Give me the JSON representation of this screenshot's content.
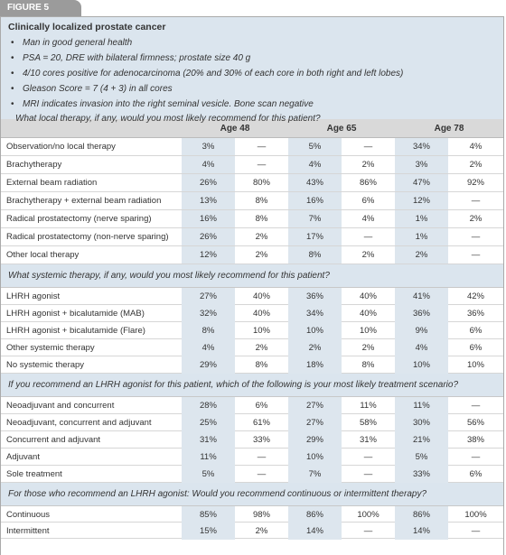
{
  "figure_label": "FIGURE 5",
  "case": {
    "title": "Clinically localized prostate cancer",
    "bullets": [
      "Man in good general health",
      "PSA = 20, DRE with bilateral firmness; prostate size 40 g",
      "4/10 cores positive for adenocarcinoma (20% and 30% of each core in both right and left lobes)",
      "Gleason Score = 7 (4 + 3) in all cores",
      "MRI indicates invasion into the right seminal vesicle. Bone scan negative"
    ]
  },
  "table": {
    "ages": [
      "Age 48",
      "Age 65",
      "Age 78"
    ],
    "sections": [
      {
        "question": "What local therapy, if any, would you most likely recommend for this patient?",
        "rows": [
          {
            "label": "Observation/no local therapy",
            "values": [
              "3%",
              "—",
              "5%",
              "—",
              "34%",
              "4%"
            ]
          },
          {
            "label": "Brachytherapy",
            "values": [
              "4%",
              "—",
              "4%",
              "2%",
              "3%",
              "2%"
            ]
          },
          {
            "label": "External beam radiation",
            "values": [
              "26%",
              "80%",
              "43%",
              "86%",
              "47%",
              "92%"
            ]
          },
          {
            "label": "Brachytherapy + external beam radiation",
            "values": [
              "13%",
              "8%",
              "16%",
              "6%",
              "12%",
              "—"
            ]
          },
          {
            "label": "Radical prostatectomy (nerve sparing)",
            "values": [
              "16%",
              "8%",
              "7%",
              "4%",
              "1%",
              "2%"
            ]
          },
          {
            "label": "Radical prostatectomy (non-nerve sparing)",
            "values": [
              "26%",
              "2%",
              "17%",
              "—",
              "1%",
              "—"
            ]
          },
          {
            "label": "Other local therapy",
            "values": [
              "12%",
              "2%",
              "8%",
              "2%",
              "2%",
              "—"
            ]
          }
        ]
      },
      {
        "question": "What systemic therapy, if any, would you most likely recommend for this patient?",
        "rows": [
          {
            "label": "LHRH agonist",
            "values": [
              "27%",
              "40%",
              "36%",
              "40%",
              "41%",
              "42%"
            ]
          },
          {
            "label": "LHRH agonist + bicalutamide (MAB)",
            "values": [
              "32%",
              "40%",
              "34%",
              "40%",
              "36%",
              "36%"
            ]
          },
          {
            "label": "LHRH agonist + bicalutamide (Flare)",
            "values": [
              "8%",
              "10%",
              "10%",
              "10%",
              "9%",
              "6%"
            ]
          },
          {
            "label": "Other systemic therapy",
            "values": [
              "4%",
              "2%",
              "2%",
              "2%",
              "4%",
              "6%"
            ]
          },
          {
            "label": "No systemic therapy",
            "values": [
              "29%",
              "8%",
              "18%",
              "8%",
              "10%",
              "10%"
            ]
          }
        ]
      },
      {
        "question": "If you recommend an LHRH agonist for this patient, which of the following is your most likely treatment scenario?",
        "rows": [
          {
            "label": "Neoadjuvant and concurrent",
            "values": [
              "28%",
              "6%",
              "27%",
              "11%",
              "11%",
              "—"
            ]
          },
          {
            "label": "Neoadjuvant, concurrent and adjuvant",
            "values": [
              "25%",
              "61%",
              "27%",
              "58%",
              "30%",
              "56%"
            ]
          },
          {
            "label": "Concurrent and adjuvant",
            "values": [
              "31%",
              "33%",
              "29%",
              "31%",
              "21%",
              "38%"
            ]
          },
          {
            "label": "Adjuvant",
            "values": [
              "11%",
              "—",
              "10%",
              "—",
              "5%",
              "—"
            ]
          },
          {
            "label": "Sole treatment",
            "values": [
              "5%",
              "—",
              "7%",
              "—",
              "33%",
              "6%"
            ]
          }
        ]
      },
      {
        "question": "For those who recommend an LHRH agonist: Would you recommend continuous or intermittent therapy?",
        "rows": [
          {
            "label": "Continuous",
            "values": [
              "85%",
              "98%",
              "86%",
              "100%",
              "86%",
              "100%"
            ]
          },
          {
            "label": "Intermittent",
            "values": [
              "15%",
              "2%",
              "14%",
              "—",
              "14%",
              "—"
            ]
          }
        ]
      }
    ]
  }
}
